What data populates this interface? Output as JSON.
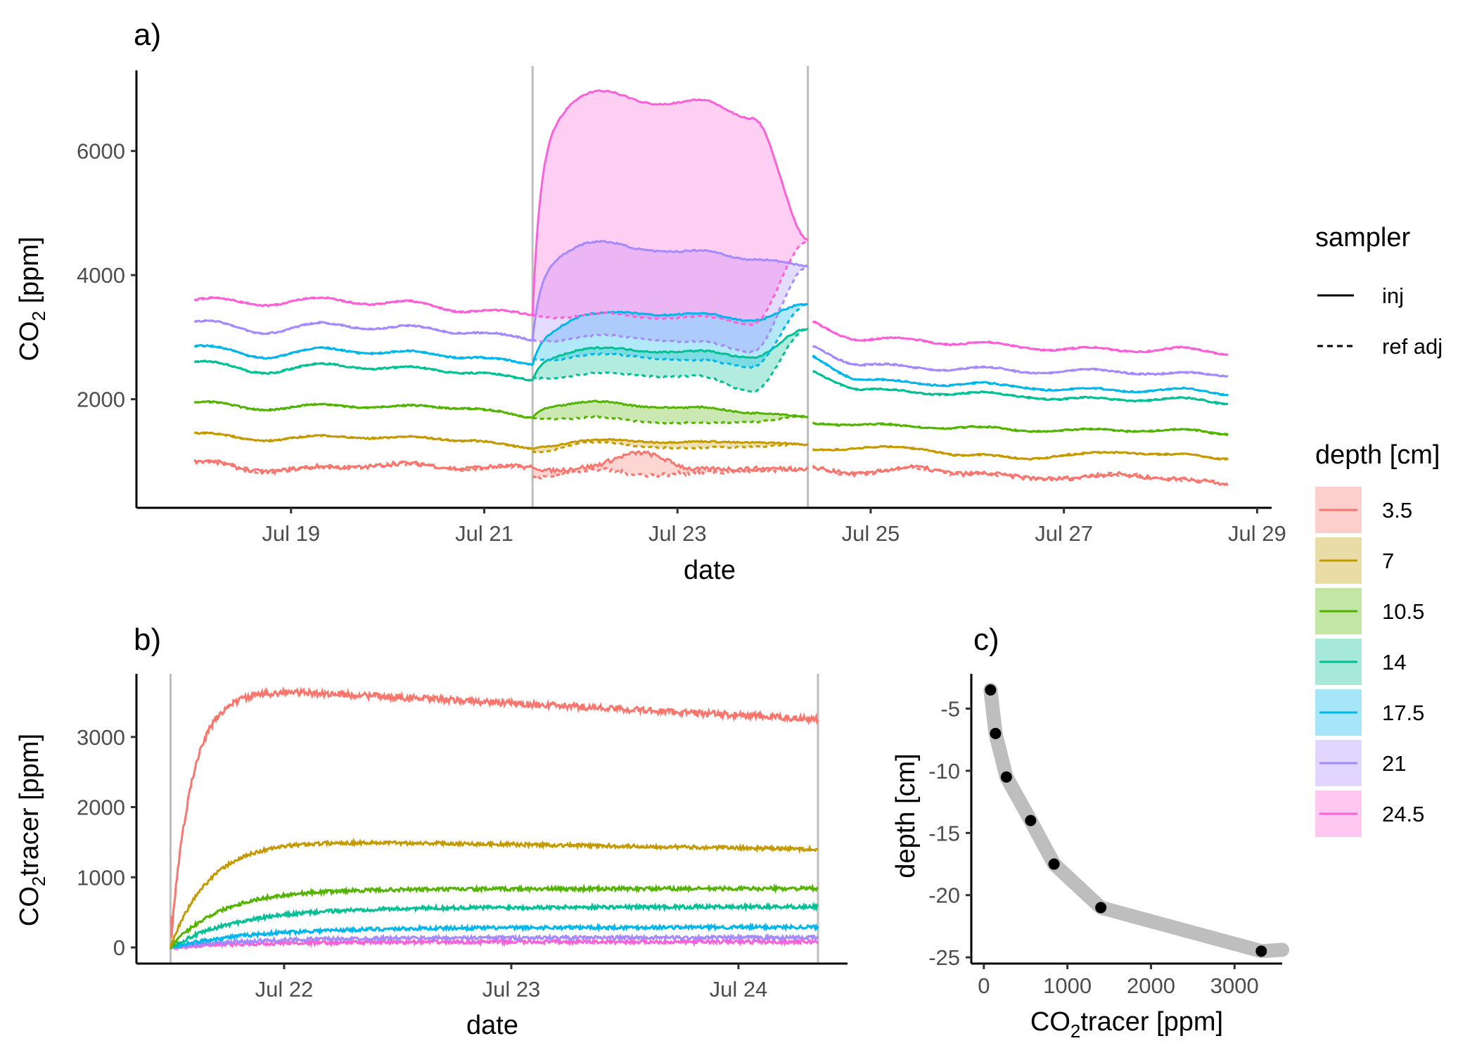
{
  "chart_data": [
    {
      "panel": "a)",
      "type": "area",
      "xlabel": "date",
      "ylabel_main": "CO",
      "ylabel_sub": "2",
      "ylabel_rest": " [ppm]",
      "x_ticks": [
        "Jul 19",
        "Jul 21",
        "Jul 23",
        "Jul 25",
        "Jul 27",
        "Jul 29"
      ],
      "x_tick_values": [
        19,
        21,
        23,
        25,
        27,
        29
      ],
      "xlim": [
        17.4,
        29.15
      ],
      "y_ticks": [
        2000,
        4000,
        6000
      ],
      "ylim": [
        250,
        7300
      ],
      "vlines": [
        21.5,
        24.35
      ],
      "segments": [
        [
          18.0,
          21.5
        ],
        [
          21.5,
          24.35
        ],
        [
          24.4,
          28.7
        ]
      ],
      "series": [
        {
          "name": "3.5",
          "inj": [
            1000,
            850,
            900,
            950,
            900,
            900,
            850,
            900,
            1150,
            850,
            900,
            850,
            850,
            800,
            900,
            800,
            750,
            720,
            800,
            700,
            650
          ]
        },
        {
          "name": "7",
          "inj": [
            1450,
            1350,
            1400,
            1380,
            1350,
            1200,
            1250,
            1330,
            1330,
            1300,
            1320,
            1250,
            1200,
            1230,
            1200,
            1100,
            1050,
            1100,
            1150,
            1100,
            1050
          ]
        },
        {
          "name": "10.5",
          "inj": [
            1950,
            1850,
            1900,
            1880,
            1870,
            1700,
            1900,
            1950,
            1900,
            1850,
            1800,
            1700,
            1600,
            1600,
            1550,
            1550,
            1500,
            1500,
            1500,
            1500,
            1450
          ]
        },
        {
          "name": "14",
          "inj": [
            2600,
            2450,
            2550,
            2500,
            2450,
            2300,
            2700,
            2800,
            2800,
            2750,
            2700,
            3100,
            2300,
            2150,
            2100,
            2100,
            2050,
            2000,
            2000,
            2000,
            1950
          ]
        },
        {
          "name": "17.5",
          "inj": [
            2850,
            2700,
            2800,
            2750,
            2700,
            2550,
            3100,
            3350,
            3400,
            3350,
            3300,
            3500,
            2500,
            2300,
            2250,
            2250,
            2200,
            2150,
            2150,
            2150,
            2100
          ]
        },
        {
          "name": "21",
          "inj": [
            3250,
            3100,
            3200,
            3150,
            3100,
            2950,
            4300,
            4500,
            4450,
            4350,
            4300,
            4100,
            2700,
            2550,
            2500,
            2500,
            2450,
            2450,
            2450,
            2400,
            2400
          ]
        },
        {
          "name": "24.5",
          "inj": [
            3600,
            3550,
            3600,
            3550,
            3450,
            3350,
            6600,
            6900,
            6850,
            6750,
            6600,
            4500,
            3100,
            2950,
            2950,
            2900,
            2850,
            2800,
            2800,
            2800,
            2750
          ]
        }
      ],
      "ref_adj": [
        {
          "name": "3.5",
          "values": [
            1000,
            850,
            900,
            950,
            900,
            900,
            750,
            850,
            800,
            800,
            850,
            850,
            850,
            800,
            900,
            800,
            750,
            720,
            800,
            700,
            650
          ]
        },
        {
          "name": "7",
          "values": [
            1450,
            1350,
            1400,
            1380,
            1350,
            1200,
            1150,
            1300,
            1250,
            1200,
            1250,
            1250,
            1200,
            1230,
            1200,
            1100,
            1050,
            1100,
            1150,
            1100,
            1050
          ]
        },
        {
          "name": "10.5",
          "values": [
            1950,
            1850,
            1900,
            1880,
            1870,
            1700,
            1700,
            1700,
            1650,
            1600,
            1650,
            1700,
            1600,
            1600,
            1550,
            1550,
            1500,
            1500,
            1500,
            1500,
            1450
          ]
        },
        {
          "name": "14",
          "values": [
            2600,
            2450,
            2550,
            2500,
            2450,
            2300,
            2350,
            2400,
            2400,
            2350,
            2150,
            3100,
            2300,
            2150,
            2100,
            2100,
            2050,
            2000,
            2000,
            2000,
            1950
          ]
        },
        {
          "name": "17.5",
          "values": [
            2850,
            2700,
            2800,
            2750,
            2700,
            2550,
            2650,
            2700,
            2700,
            2600,
            2550,
            3500,
            2500,
            2300,
            2250,
            2250,
            2200,
            2150,
            2150,
            2150,
            2100
          ]
        },
        {
          "name": "21",
          "values": [
            3250,
            3100,
            3200,
            3150,
            3100,
            2950,
            2950,
            3000,
            3000,
            2900,
            2800,
            4100,
            2700,
            2550,
            2500,
            2500,
            2450,
            2450,
            2450,
            2400,
            2400
          ]
        },
        {
          "name": "24.5",
          "values": [
            3600,
            3550,
            3600,
            3550,
            3450,
            3350,
            3350,
            3350,
            3350,
            3300,
            3250,
            4500,
            3100,
            2950,
            2950,
            2900,
            2850,
            2800,
            2800,
            2800,
            2750
          ]
        }
      ]
    },
    {
      "panel": "b)",
      "type": "line",
      "xlabel": "date",
      "ylabel_main": "CO",
      "ylabel_sub": "2",
      "ylabel_rest": "tracer [ppm]",
      "x_ticks": [
        "Jul 22",
        "Jul 23",
        "Jul 24"
      ],
      "x_tick_values": [
        22,
        23,
        24
      ],
      "xlim": [
        21.35,
        24.48
      ],
      "y_ticks": [
        0,
        1000,
        2000,
        3000
      ],
      "ylim": [
        -230,
        3900
      ],
      "vlines": [
        21.5,
        24.35
      ],
      "series": [
        {
          "name": "3.5",
          "plateau": 3650,
          "end": 3250,
          "tau": 0.09
        },
        {
          "name": "7",
          "plateau": 1520,
          "end": 1400,
          "tau": 0.17
        },
        {
          "name": "10.5",
          "plateau": 830,
          "end": 840,
          "tau": 0.22
        },
        {
          "name": "14",
          "plateau": 570,
          "end": 580,
          "tau": 0.3
        },
        {
          "name": "17.5",
          "plateau": 280,
          "end": 290,
          "tau": 0.35
        },
        {
          "name": "21",
          "plateau": 140,
          "end": 140,
          "tau": 0.35
        },
        {
          "name": "24.5",
          "plateau": 80,
          "end": 80,
          "tau": 0.35
        }
      ]
    },
    {
      "panel": "c)",
      "type": "scatter",
      "xlabel_main": "CO",
      "xlabel_sub": "2",
      "xlabel_rest": "tracer [ppm]",
      "ylabel": "depth [cm]",
      "x_ticks": [
        0,
        1000,
        2000,
        3000
      ],
      "xlim": [
        -150,
        3570
      ],
      "y_ticks": [
        -5,
        -10,
        -15,
        -20,
        -25
      ],
      "ylim": [
        -25.5,
        -2.2
      ],
      "points": [
        {
          "x": 80,
          "y": -3.5
        },
        {
          "x": 140,
          "y": -7
        },
        {
          "x": 270,
          "y": -10.5
        },
        {
          "x": 560,
          "y": -14
        },
        {
          "x": 840,
          "y": -17.5
        },
        {
          "x": 1400,
          "y": -21
        },
        {
          "x": 3320,
          "y": -24.5
        }
      ]
    }
  ],
  "legend": {
    "sampler_title": "sampler",
    "sampler_items": [
      {
        "label": "inj",
        "style": "solid"
      },
      {
        "label": "ref adj",
        "style": "dashed"
      }
    ],
    "depth_title": "depth [cm]",
    "depth_items": [
      {
        "label": "3.5",
        "color": "#F8766D"
      },
      {
        "label": "7",
        "color": "#C49A00"
      },
      {
        "label": "10.5",
        "color": "#53B400"
      },
      {
        "label": "14",
        "color": "#00C094"
      },
      {
        "label": "17.5",
        "color": "#00B6EB"
      },
      {
        "label": "21",
        "color": "#A58AFF"
      },
      {
        "label": "24.5",
        "color": "#FB61D7"
      }
    ]
  },
  "colors": {
    "vline": "#BEBEBE",
    "profile_band": "#BEBEBE",
    "point": "#000000"
  }
}
